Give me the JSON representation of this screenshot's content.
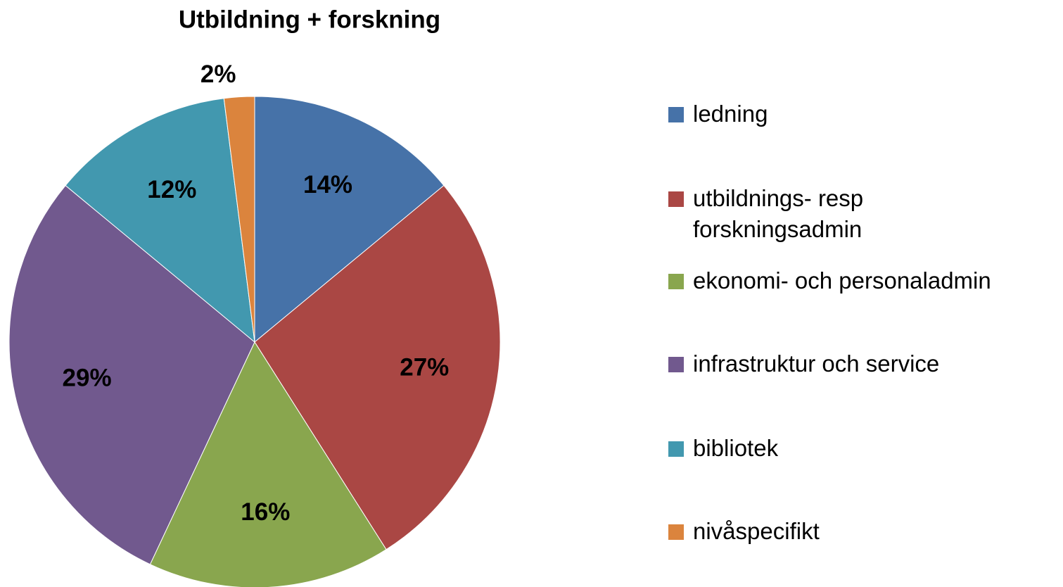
{
  "chart_data": {
    "type": "pie",
    "title": "Utbildning + forskning",
    "categories": [
      "ledning",
      "utbildnings- resp forskningsadmin",
      "ekonomi- och personaladmin",
      "infrastruktur och service",
      "bibliotek",
      "nivåspecifikt"
    ],
    "values": [
      14,
      27,
      16,
      29,
      12,
      2
    ],
    "value_labels": [
      "14%",
      "27%",
      "16%",
      "29%",
      "12%",
      "2%"
    ],
    "colors": [
      "#4672a8",
      "#aa4744",
      "#89a64e",
      "#71598e",
      "#4298af",
      "#db843d"
    ],
    "legend": "right"
  }
}
